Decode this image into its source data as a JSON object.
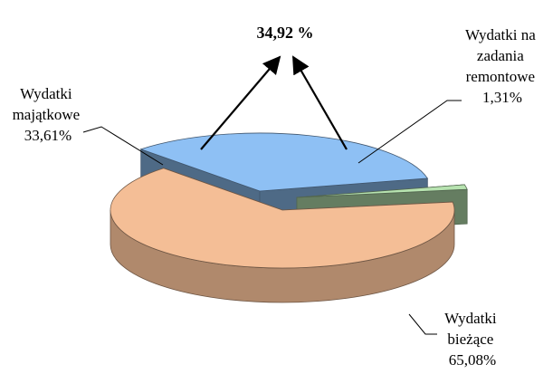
{
  "chart_data": {
    "type": "pie",
    "style": "3d-exploded",
    "callout": "34,92 %",
    "slices": [
      {
        "label_lines": [
          "Wydatki",
          "bieżące",
          "65,08%"
        ],
        "value": 65.08,
        "color": "#F4BE96"
      },
      {
        "label_lines": [
          "Wydatki",
          "majątkowe",
          "33,61%"
        ],
        "value": 33.61,
        "color": "#8EC0F4"
      },
      {
        "label_lines": [
          "Wydatki na",
          "zadania",
          "remontowe",
          "1,31%"
        ],
        "value": 1.31,
        "color": "#B7E3B0"
      }
    ]
  }
}
